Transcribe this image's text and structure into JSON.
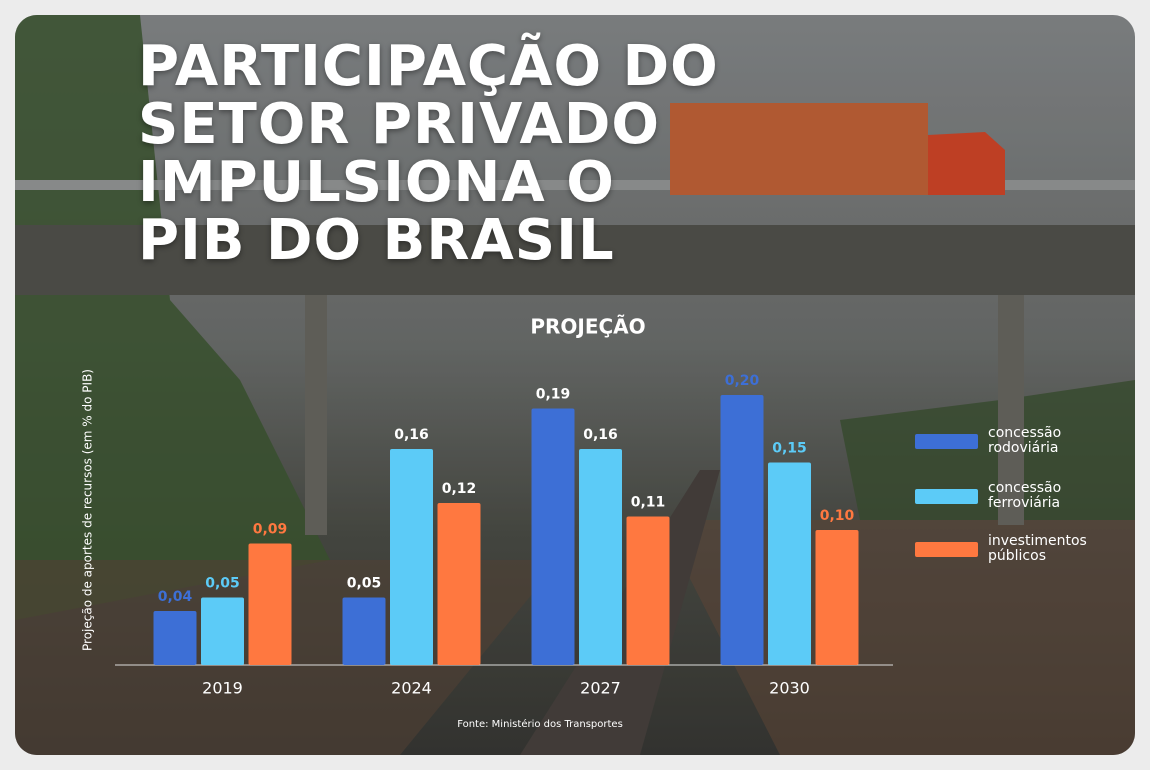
{
  "chart_data": {
    "type": "bar",
    "title": "PARTICIPAÇÃO DO\nSETOR PRIVADO\nIMPULSIONA O\nPIB DO BRASIL",
    "subtitle": "PROJEÇÃO",
    "y_label": "Projeção de aportes de recursos (em % do PIB)",
    "source": "Fonte: Ministério dos Transportes",
    "categories": [
      "2019",
      "2024",
      "2027",
      "2030"
    ],
    "series": [
      {
        "name": "concessão rodoviária",
        "color": "#3d6fd6",
        "values": [
          0.04,
          0.05,
          0.19,
          0.2
        ],
        "value_labels": [
          "0,04",
          "0,05",
          "0,19",
          "0,20"
        ]
      },
      {
        "name": "concessão ferroviária",
        "color": "#5ccbf7",
        "values": [
          0.05,
          0.16,
          0.16,
          0.15
        ],
        "value_labels": [
          "0,05",
          "0,16",
          "0,16",
          "0,15"
        ]
      },
      {
        "name": "investimentos públicos",
        "color": "#ff7840",
        "values": [
          0.09,
          0.12,
          0.11,
          0.1
        ],
        "value_labels": [
          "0,09",
          "0,12",
          "0,11",
          "0,10"
        ]
      }
    ],
    "ylim": [
      0,
      0.2
    ],
    "legend": "right"
  }
}
